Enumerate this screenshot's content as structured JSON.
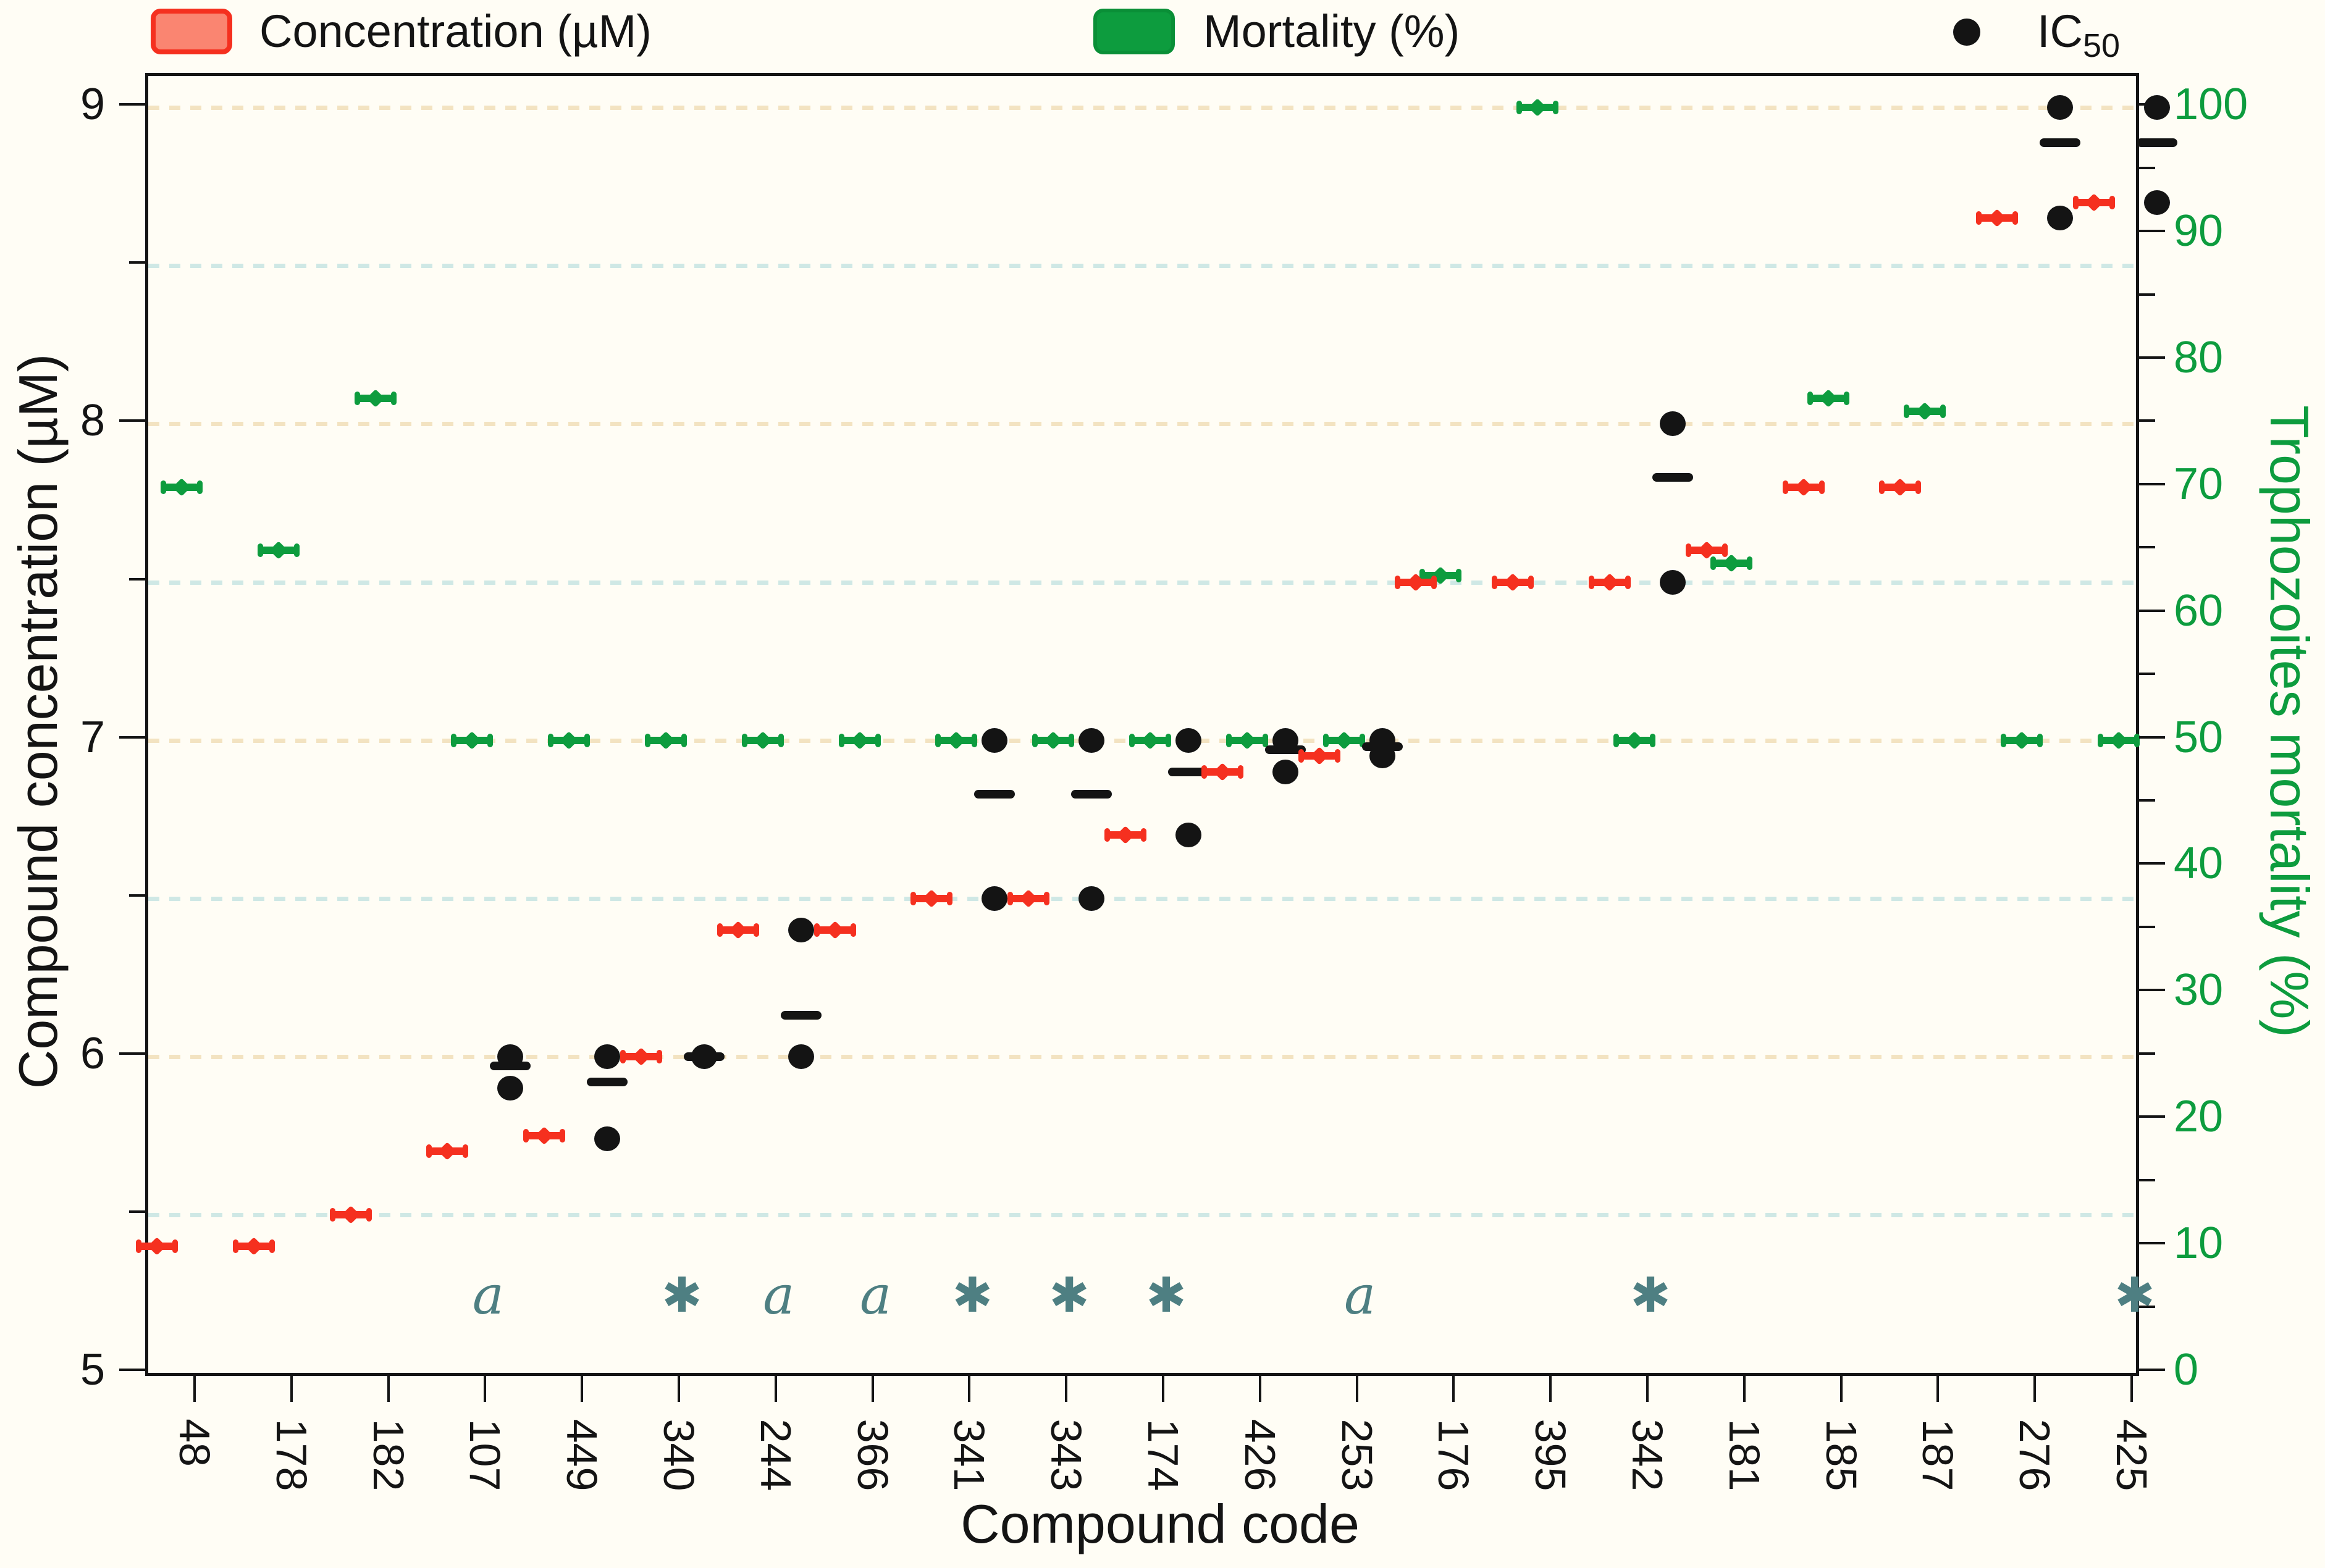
{
  "page": {
    "background": "#fffdf5"
  },
  "legend": {
    "concentration": {
      "label": "Concentration (µM)",
      "swatch_fill": "#fa8571",
      "swatch_border": "#f5301f"
    },
    "mortality": {
      "label": "Mortality (%)",
      "swatch_fill": "#0d9c3e",
      "swatch_border": "#0a8f37"
    },
    "ic50": {
      "label_main": "IC",
      "label_sub": "50",
      "marker_color": "#141414"
    }
  },
  "chart_data": {
    "type": "scatter",
    "title": "",
    "xlabel": "Compound code",
    "ylabel_left": "Compound concentration (µM)",
    "ylabel_right": "Trophozoites mortality (%)",
    "y_left_range": [
      5,
      9
    ],
    "y_left_major_ticks": [
      5,
      6,
      7,
      8,
      9
    ],
    "y_left_minor_ticks": [
      5.5,
      6.5,
      7.5,
      8.5
    ],
    "y_right_range": [
      0,
      100
    ],
    "y_right_major_ticks": [
      0,
      10,
      20,
      30,
      40,
      50,
      60,
      70,
      80,
      90,
      100
    ],
    "y_right_minor_step": 5,
    "grid_lines": [
      {
        "value": 9.0,
        "color": "#f3e3c1"
      },
      {
        "value": 8.5,
        "color": "#cfe8e5"
      },
      {
        "value": 8.0,
        "color": "#f3e3c1"
      },
      {
        "value": 7.5,
        "color": "#cfe8e5"
      },
      {
        "value": 7.0,
        "color": "#f3e3c1"
      },
      {
        "value": 6.5,
        "color": "#cfe8e5"
      },
      {
        "value": 6.0,
        "color": "#f3e3c1"
      },
      {
        "value": 5.5,
        "color": "#cfe8e5"
      }
    ],
    "legend_position": "top",
    "categories": [
      "48",
      "178",
      "182",
      "107",
      "449",
      "340",
      "244",
      "366",
      "341",
      "343",
      "174",
      "426",
      "253",
      "176",
      "395",
      "342",
      "181",
      "185",
      "187",
      "276",
      "425"
    ],
    "series": [
      {
        "name": "Concentration (µM)",
        "marker": "horizontal-errorbar",
        "color": "#f5301f",
        "axis": "left",
        "values": [
          5.4,
          5.4,
          5.5,
          5.7,
          5.75,
          6.0,
          6.4,
          6.4,
          6.5,
          6.5,
          6.7,
          6.9,
          6.95,
          7.5,
          7.5,
          7.5,
          7.6,
          7.8,
          7.8,
          8.65,
          8.7
        ]
      },
      {
        "name": "Mortality (%)",
        "marker": "horizontal-errorbar",
        "color": "#0d9c3e",
        "axis": "right",
        "values": [
          70,
          65,
          77,
          50,
          50,
          50,
          50,
          50,
          50,
          50,
          50,
          50,
          50,
          63,
          100,
          50,
          64,
          77,
          76,
          50,
          50
        ]
      },
      {
        "name": "IC50",
        "marker": "dot",
        "color": "#141414",
        "axis": "left",
        "values": [
          [],
          [],
          [],
          [
            6.0,
            5.9
          ],
          [
            6.0,
            5.74
          ],
          [
            6.0
          ],
          [
            6.4,
            6.0
          ],
          [],
          [
            7.0,
            6.5
          ],
          [
            7.0,
            6.5
          ],
          [
            7.0,
            6.7
          ],
          [
            7.0,
            6.9
          ],
          [
            7.0,
            6.95
          ],
          [],
          [],
          [
            8.0,
            7.5
          ],
          [],
          [],
          [],
          [
            9.0,
            8.65
          ],
          [
            9.0,
            8.7
          ]
        ]
      },
      {
        "name": "IC50 median",
        "marker": "dash",
        "color": "#141414",
        "axis": "left",
        "values": [
          null,
          null,
          null,
          5.97,
          5.92,
          6.0,
          6.13,
          null,
          6.83,
          6.83,
          6.9,
          6.97,
          6.98,
          null,
          null,
          7.83,
          null,
          null,
          null,
          8.89,
          8.89
        ]
      }
    ],
    "annotations": [
      "",
      "",
      "",
      "a",
      "",
      "*",
      "a",
      "a",
      "*",
      "*",
      "*",
      "",
      "a",
      "",
      "",
      "*",
      "",
      "",
      "",
      "",
      "*"
    ],
    "annotation_color": "#4e7f82"
  }
}
